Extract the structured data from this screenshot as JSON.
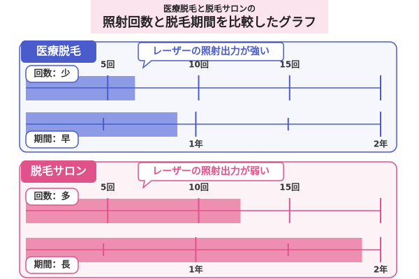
{
  "header": {
    "subtitle": "医療脱毛と脱毛サロンの",
    "title": "照射回数と脱毛期間を比較したグラフ"
  },
  "chart_data": [
    {
      "type": "bar",
      "title": "医療脱毛",
      "annotation": "レーザーの照射出力が強い",
      "color": "#4a5ccc",
      "bar_color": "#8d9be6",
      "rows": [
        {
          "label": "回数：少",
          "value": 6.5,
          "xlim": [
            0.5,
            20
          ],
          "xticks": [
            {
              "value": 5,
              "label": "5回"
            },
            {
              "value": 10,
              "label": "10回"
            },
            {
              "value": 15,
              "label": "15回"
            }
          ],
          "minor_ticks": [
            20
          ]
        },
        {
          "label": "期間：早",
          "value": 0.9,
          "xlim": [
            0.08,
            2
          ],
          "xticks": [
            {
              "value": 1,
              "label": "1年"
            },
            {
              "value": 2,
              "label": "2年"
            }
          ],
          "minor_ticks": [
            0.5,
            1.5
          ]
        }
      ]
    },
    {
      "type": "bar",
      "title": "脱毛サロン",
      "annotation": "レーザーの照射出力が弱い",
      "color": "#e0528a",
      "bar_color": "#ee8fb2",
      "rows": [
        {
          "label": "回数：多",
          "value": 12.3,
          "xlim": [
            0.5,
            20
          ],
          "xticks": [
            {
              "value": 5,
              "label": "5回"
            },
            {
              "value": 10,
              "label": "10回"
            },
            {
              "value": 15,
              "label": "15回"
            }
          ],
          "minor_ticks": [
            20
          ]
        },
        {
          "label": "期間：長",
          "value": 1.9,
          "xlim": [
            0.08,
            2
          ],
          "xticks": [
            {
              "value": 1,
              "label": "1年"
            },
            {
              "value": 2,
              "label": "2年"
            }
          ],
          "minor_ticks": [
            0.5,
            1.5
          ]
        }
      ]
    }
  ]
}
